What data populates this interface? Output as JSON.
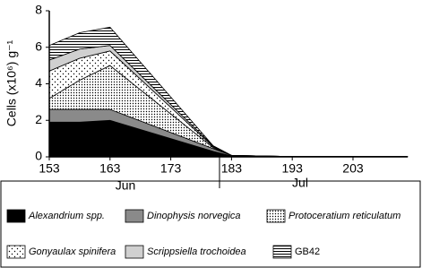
{
  "chart_data": {
    "type": "stacked-area",
    "y_label": "Cells (x10⁶) g⁻¹",
    "x": [
      153,
      158,
      163,
      180,
      183,
      193,
      203,
      212
    ],
    "xlim": [
      153,
      212
    ],
    "xticks": [
      153,
      163,
      173,
      183,
      193,
      203
    ],
    "ylim": [
      0,
      8
    ],
    "yticks": [
      0,
      2,
      4,
      6,
      8
    ],
    "annotations": [
      "Jun",
      "Jul"
    ],
    "series": [
      {
        "name": "Alexandrium spp.",
        "color": "#000000",
        "pattern": "solid",
        "values": [
          1.9,
          1.9,
          2.0,
          0.3,
          0.05,
          0.02,
          0.02,
          0.02
        ]
      },
      {
        "name": "Dinophysis norvegica",
        "color": "#8a8a8a",
        "pattern": "solid",
        "values": [
          0.7,
          0.7,
          0.6,
          0.15,
          0.03,
          0,
          0,
          0
        ]
      },
      {
        "name": "Protoceratium reticulatum",
        "color": "#000000",
        "pattern": "dense-dots",
        "values": [
          0.6,
          1.6,
          2.4,
          0.05,
          0,
          0,
          0,
          0
        ]
      },
      {
        "name": "Gonyaulax spinifera",
        "color": "#000000",
        "pattern": "sparse-dots",
        "values": [
          1.5,
          1.2,
          0.8,
          0.05,
          0,
          0,
          0,
          0
        ]
      },
      {
        "name": "Scrippsiella trochoidea",
        "color": "#d0d0d0",
        "pattern": "solid",
        "values": [
          0.6,
          0.5,
          0.3,
          0.05,
          0,
          0,
          0,
          0
        ]
      },
      {
        "name": "GB42",
        "color": "#000000",
        "pattern": "hlines",
        "values": [
          0.8,
          0.9,
          1.0,
          0,
          0,
          0,
          0,
          0
        ]
      }
    ]
  }
}
